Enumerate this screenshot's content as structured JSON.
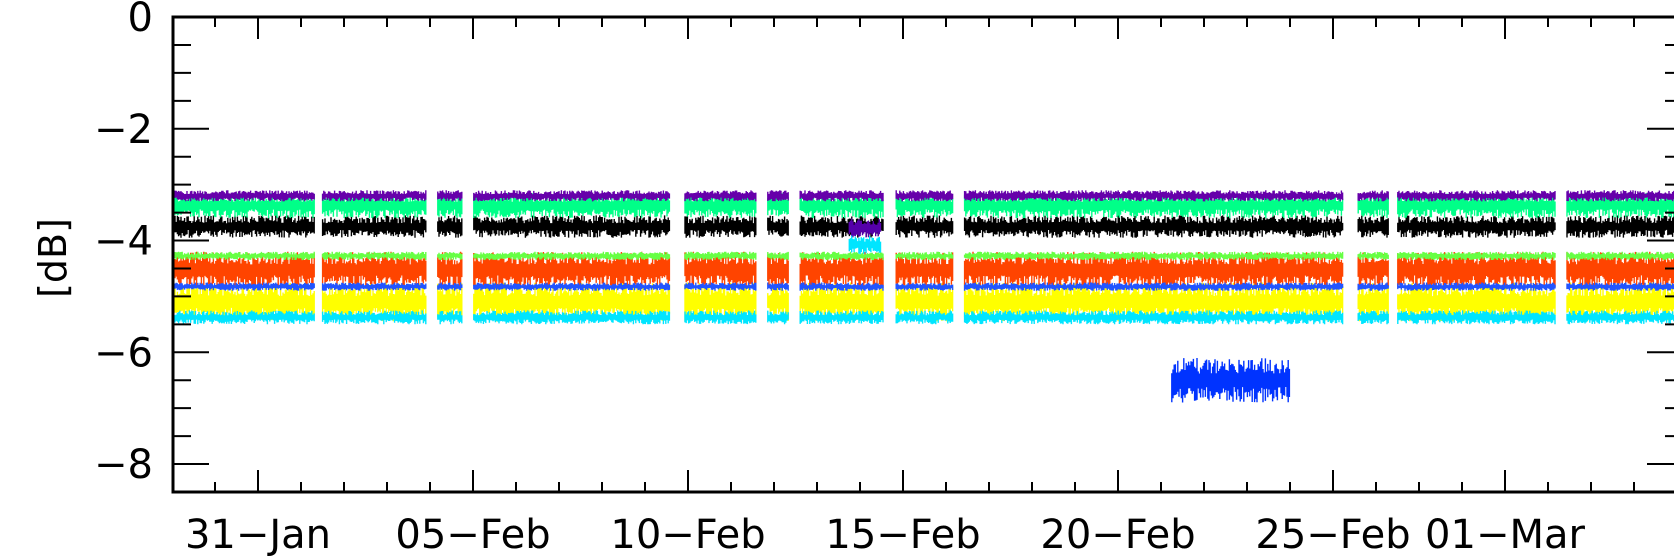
{
  "chart_data": {
    "type": "scatter",
    "title": "",
    "xlabel": "",
    "ylabel": "[dB]",
    "x_range": [
      "2011-01-29",
      "2011-03-05"
    ],
    "ylim": [
      -8.5,
      0
    ],
    "y_ticks": [
      0,
      -2,
      -4,
      -6,
      -8
    ],
    "y_tick_labels": [
      "0",
      "−2",
      "−4",
      "−6",
      "−8"
    ],
    "x_ticks": [
      "2011-01-31",
      "2011-02-05",
      "2011-02-10",
      "2011-02-15",
      "2011-02-20",
      "2011-02-25",
      "2011-03-01"
    ],
    "x_tick_labels": [
      "31−Jan",
      "05−Feb",
      "10−Feb",
      "15−Feb",
      "20−Feb",
      "25−Feb",
      "01−Mar"
    ],
    "grid": false,
    "gaps": [
      [
        "2011-02-01 08:00",
        "2011-02-01 12:00"
      ],
      [
        "2011-02-03 22:00",
        "2011-02-04 04:00"
      ],
      [
        "2011-02-04 18:00",
        "2011-02-05 00:00"
      ],
      [
        "2011-02-09 14:00",
        "2011-02-09 22:00"
      ],
      [
        "2011-02-11 14:00",
        "2011-02-11 20:00"
      ],
      [
        "2011-02-12 08:00",
        "2011-02-12 14:00"
      ],
      [
        "2011-02-14 13:00",
        "2011-02-14 20:00"
      ],
      [
        "2011-02-16 04:00",
        "2011-02-16 10:00"
      ],
      [
        "2011-02-25 06:00",
        "2011-02-25 14:00"
      ],
      [
        "2011-02-26 07:00",
        "2011-02-26 12:00"
      ],
      [
        "2011-03-02 04:00",
        "2011-03-02 10:00"
      ]
    ],
    "series": [
      {
        "color": "#ffff00",
        "y_min": -5.45,
        "y_max": -4.75,
        "start": "2011-01-29",
        "end": "2011-03-05"
      },
      {
        "color": "#00e5ff",
        "y_min": -5.5,
        "y_max": -5.25,
        "start": "2011-01-29",
        "end": "2011-03-05"
      },
      {
        "color": "#ff4400",
        "y_min": -4.85,
        "y_max": -4.2,
        "start": "2011-01-29",
        "end": "2011-03-05"
      },
      {
        "color": "#2255ff",
        "y_min": -4.9,
        "y_max": -4.75,
        "start": "2011-01-29",
        "end": "2011-03-05"
      },
      {
        "color": "#66ff44",
        "y_min": -4.35,
        "y_max": -4.2,
        "start": "2011-01-29",
        "end": "2011-03-05"
      },
      {
        "color": "#000000",
        "y_min": -3.95,
        "y_max": -3.55,
        "start": "2011-01-29",
        "end": "2011-03-05"
      },
      {
        "color": "#00ff88",
        "y_min": -3.6,
        "y_max": -3.15,
        "start": "2011-01-29",
        "end": "2011-03-05"
      },
      {
        "color": "#6600aa",
        "y_min": -3.3,
        "y_max": -3.1,
        "start": "2011-01-29",
        "end": "2011-03-05"
      },
      {
        "color": "#5500aa",
        "y_min": -3.95,
        "y_max": -3.6,
        "start": "2011-02-13 18:00",
        "end": "2011-02-14 12:00"
      },
      {
        "color": "#00e5ff",
        "y_min": -4.25,
        "y_max": -3.9,
        "start": "2011-02-13 18:00",
        "end": "2011-02-14 12:00"
      },
      {
        "color": "#0033ff",
        "y_min": -6.9,
        "y_max": -6.1,
        "start": "2011-02-21 06:00",
        "end": "2011-02-24 00:00"
      }
    ]
  }
}
